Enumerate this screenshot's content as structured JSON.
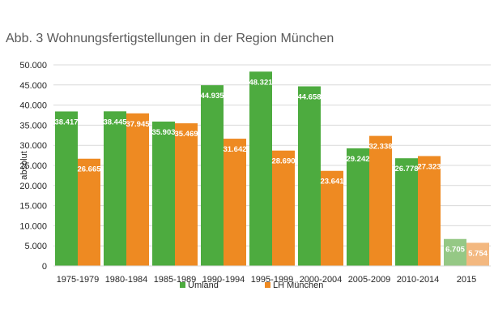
{
  "title": "Abb. 3 Wohnungsfertigstellungen in der Region München",
  "chart_data": {
    "type": "bar",
    "title": "Abb. 3 Wohnungsfertigstellungen in der Region München",
    "xlabel": "",
    "ylabel": "absolut",
    "ylim": [
      0,
      50000
    ],
    "yticks": [
      "0",
      "5.000",
      "10.000",
      "15.000",
      "20.000",
      "25.000",
      "30.000",
      "35.000",
      "40.000",
      "45.000",
      "50.000"
    ],
    "grid": true,
    "legend_position": "bottom",
    "categories": [
      "1975-1979",
      "1980-1984",
      "1985-1989",
      "1990-1994",
      "1995-1999",
      "2000-2004",
      "2005-2009",
      "2010-2014",
      "2015"
    ],
    "series": [
      {
        "name": "Umland",
        "color": "#4dab3f",
        "values": [
          38417,
          38445,
          35903,
          44935,
          48321,
          44658,
          29242,
          26778,
          6705
        ],
        "labels": [
          "38.417",
          "38.445",
          "35.903",
          "44.935",
          "48.321",
          "44.658",
          "29.242",
          "26.778",
          "6.705"
        ]
      },
      {
        "name": "LH München",
        "color": "#ee8a22",
        "values": [
          26665,
          37945,
          35469,
          31642,
          28690,
          23641,
          32338,
          27323,
          5754
        ],
        "labels": [
          "26.665",
          "37.945",
          "35.469",
          "31.642",
          "28.690",
          "23.641",
          "32.338",
          "27.323",
          "5.754"
        ]
      }
    ],
    "highlight_light_colors": {
      "Umland": "#95c885",
      "LH München": "#f3b880"
    },
    "highlighted_category": "2015"
  }
}
